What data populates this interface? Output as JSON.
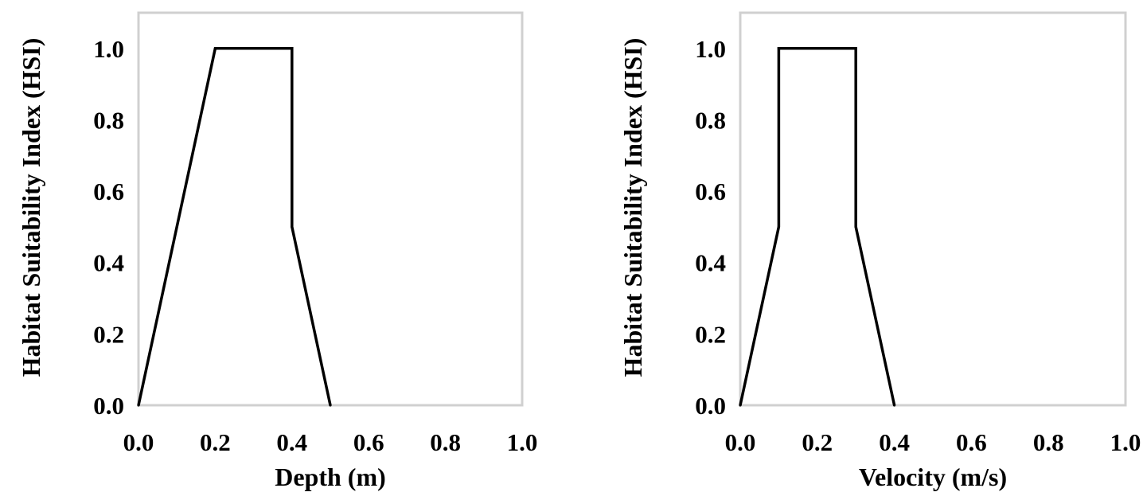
{
  "chart_data": [
    {
      "type": "line",
      "title": "",
      "xlabel": "Depth (m)",
      "ylabel": "Habitat Suitability Index (HSI)",
      "xlim": [
        0.0,
        1.0
      ],
      "ylim": [
        0.0,
        1.1
      ],
      "xticks": [
        "0.0",
        "0.2",
        "0.4",
        "0.6",
        "0.8",
        "1.0"
      ],
      "yticks": [
        "0.0",
        "0.2",
        "0.4",
        "0.6",
        "0.8",
        "1.0"
      ],
      "grid": false,
      "legend": "none",
      "series": [
        {
          "color": "#000000",
          "x": [
            0.0,
            0.2,
            0.4,
            0.4,
            0.5
          ],
          "y": [
            0.0,
            1.0,
            1.0,
            0.5,
            0.0
          ]
        }
      ]
    },
    {
      "type": "line",
      "title": "",
      "xlabel": "Velocity (m/s)",
      "ylabel": "Habitat Suitability Index (HSI)",
      "xlim": [
        0.0,
        1.0
      ],
      "ylim": [
        0.0,
        1.1
      ],
      "xticks": [
        "0.0",
        "0.2",
        "0.4",
        "0.6",
        "0.8",
        "1.0"
      ],
      "yticks": [
        "0.0",
        "0.2",
        "0.4",
        "0.6",
        "0.8",
        "1.0"
      ],
      "grid": false,
      "legend": "none",
      "series": [
        {
          "color": "#000000",
          "x": [
            0.0,
            0.1,
            0.1,
            0.3,
            0.3,
            0.4
          ],
          "y": [
            0.0,
            0.5,
            1.0,
            1.0,
            0.5,
            0.0
          ]
        }
      ]
    }
  ]
}
